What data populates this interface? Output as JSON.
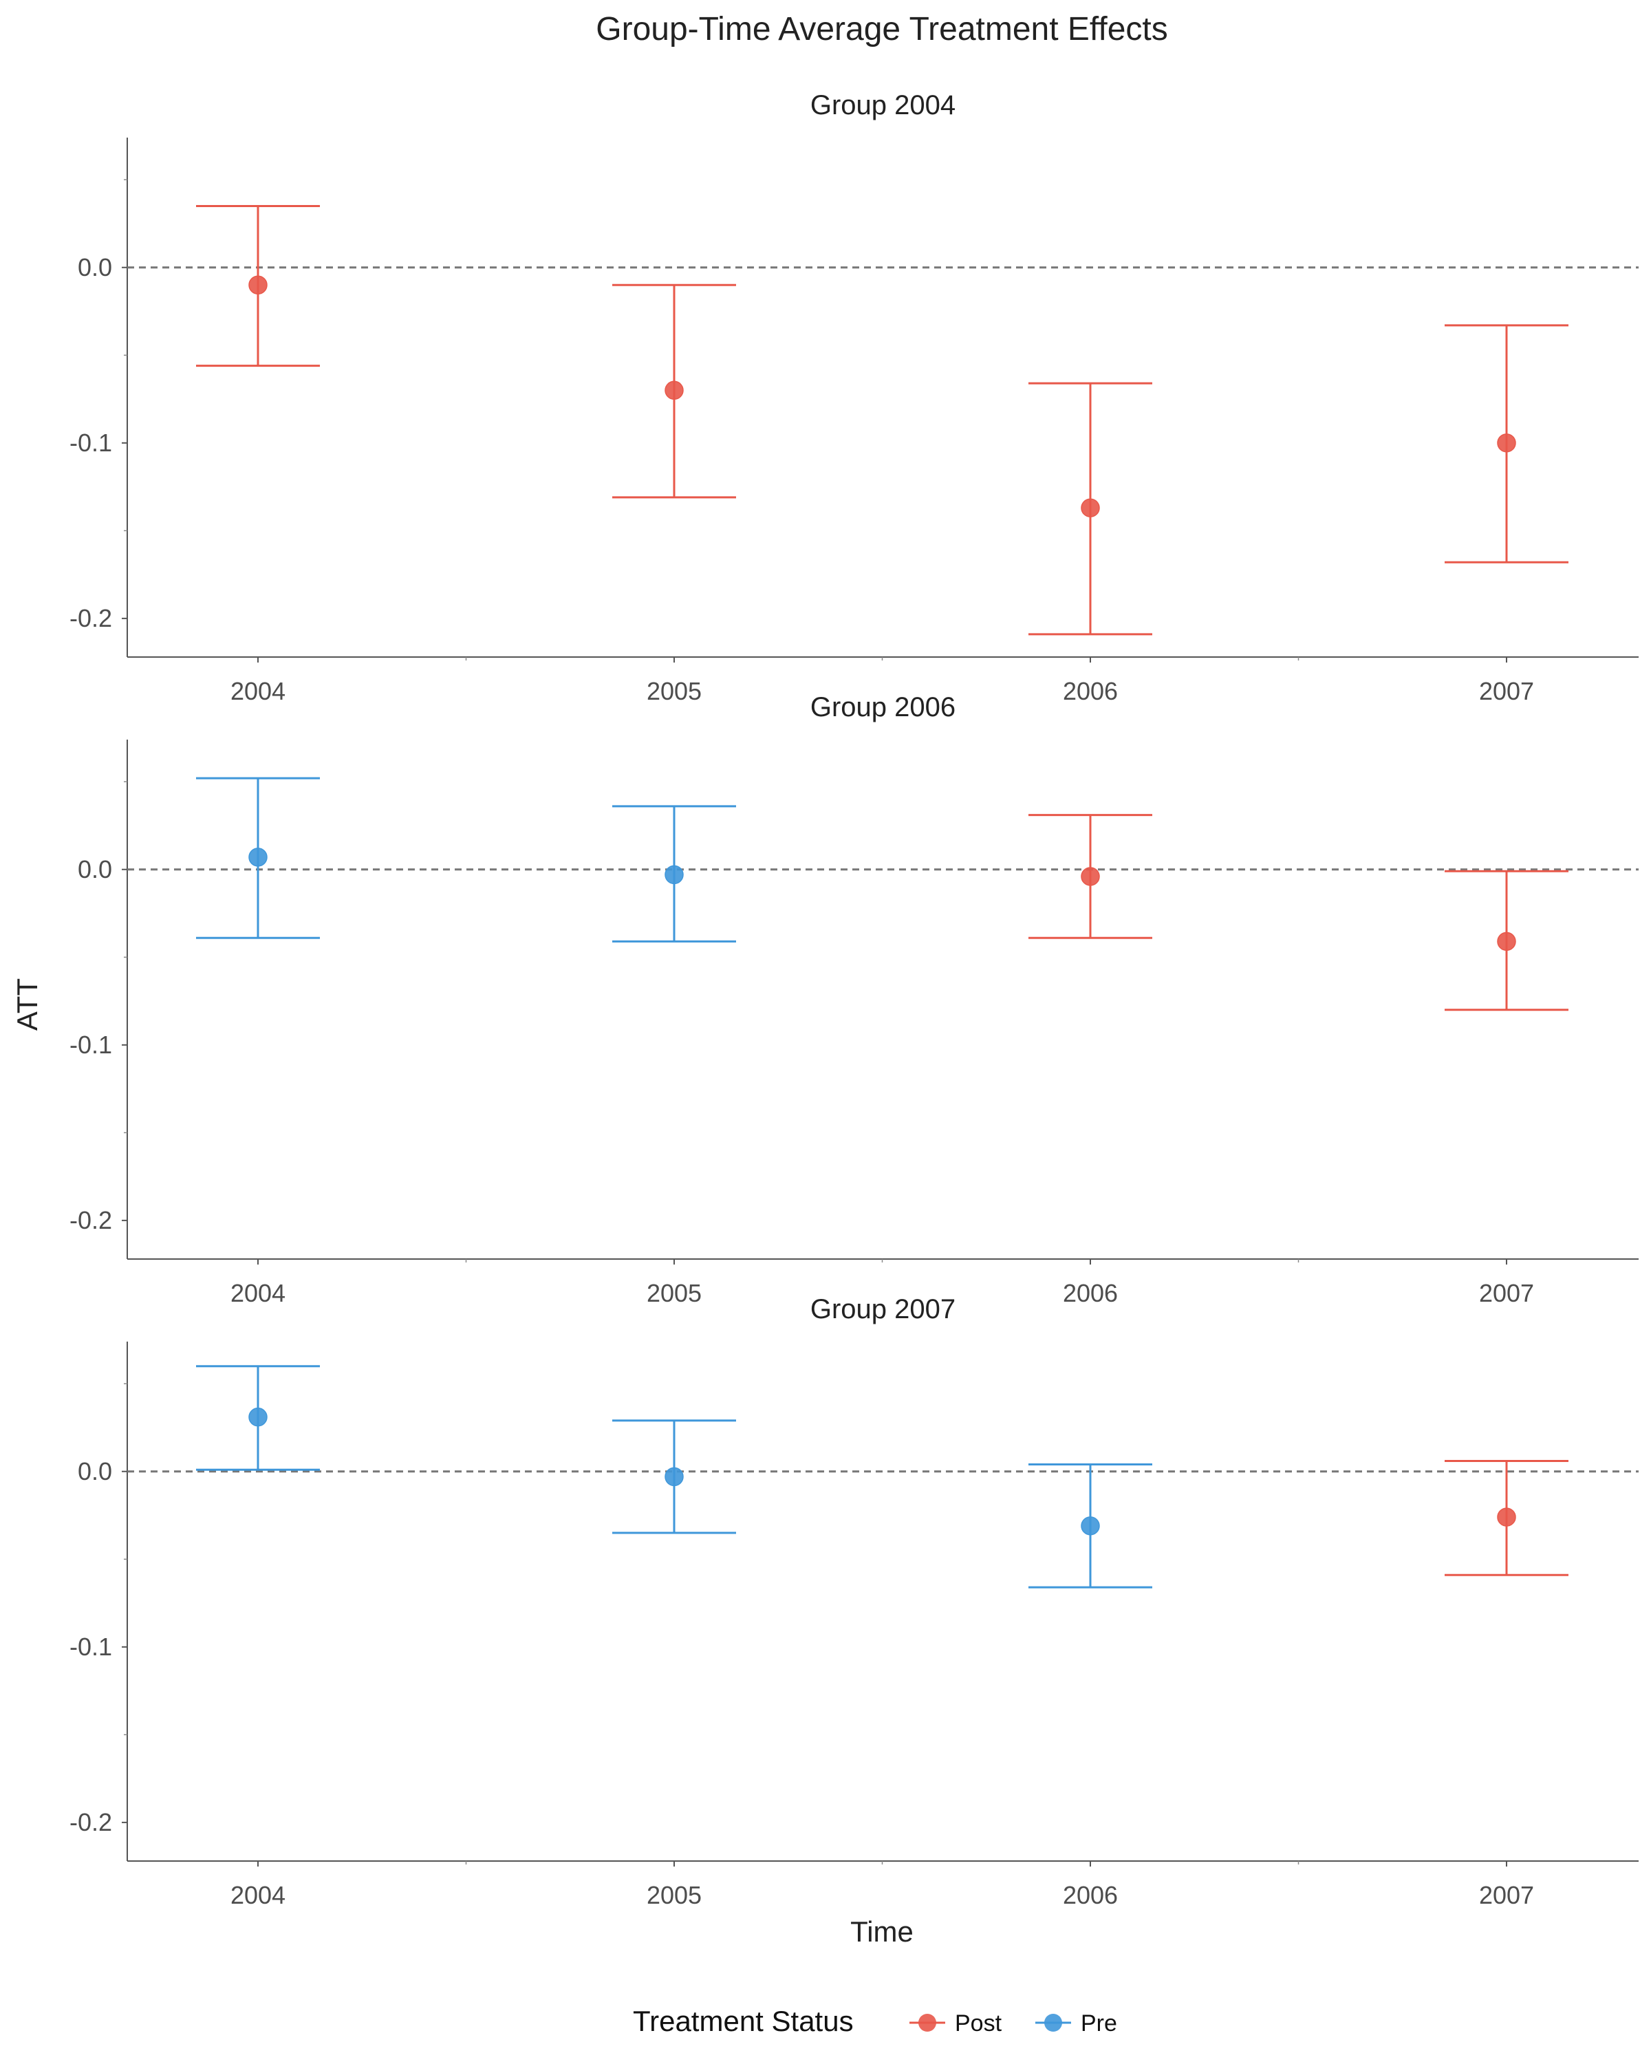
{
  "chart_data": {
    "type": "scatter",
    "subtype": "errorbar-facets",
    "title": "Group-Time Average Treatment Effects",
    "xlabel": "Time",
    "ylabel": "ATT",
    "x": [
      "2004",
      "2005",
      "2006",
      "2007"
    ],
    "ylim": [
      -0.222,
      0.074
    ],
    "yticks": [
      "0.0",
      "-0.1",
      "-0.2"
    ],
    "zero_line": "dashed",
    "grid": false,
    "legend": {
      "title": "Treatment Status",
      "placement": "bottom",
      "items": [
        {
          "label": "Post",
          "color": "#E8584A"
        },
        {
          "label": "Pre",
          "color": "#3F97DA"
        }
      ]
    },
    "panels": [
      {
        "title": "Group 2004",
        "points": [
          {
            "x": "2004",
            "att": -0.01,
            "lower": -0.056,
            "upper": 0.035,
            "status": "Post"
          },
          {
            "x": "2005",
            "att": -0.07,
            "lower": -0.131,
            "upper": -0.01,
            "status": "Post"
          },
          {
            "x": "2006",
            "att": -0.137,
            "lower": -0.209,
            "upper": -0.066,
            "status": "Post"
          },
          {
            "x": "2007",
            "att": -0.1,
            "lower": -0.168,
            "upper": -0.033,
            "status": "Post"
          }
        ]
      },
      {
        "title": "Group 2006",
        "points": [
          {
            "x": "2004",
            "att": 0.007,
            "lower": -0.039,
            "upper": 0.052,
            "status": "Pre"
          },
          {
            "x": "2005",
            "att": -0.003,
            "lower": -0.041,
            "upper": 0.036,
            "status": "Pre"
          },
          {
            "x": "2006",
            "att": -0.004,
            "lower": -0.039,
            "upper": 0.031,
            "status": "Post"
          },
          {
            "x": "2007",
            "att": -0.041,
            "lower": -0.08,
            "upper": -0.001,
            "status": "Post"
          }
        ]
      },
      {
        "title": "Group 2007",
        "points": [
          {
            "x": "2004",
            "att": 0.031,
            "lower": 0.001,
            "upper": 0.06,
            "status": "Pre"
          },
          {
            "x": "2005",
            "att": -0.003,
            "lower": -0.035,
            "upper": 0.029,
            "status": "Pre"
          },
          {
            "x": "2006",
            "att": -0.031,
            "lower": -0.066,
            "upper": 0.004,
            "status": "Pre"
          },
          {
            "x": "2007",
            "att": -0.026,
            "lower": -0.059,
            "upper": 0.006,
            "status": "Post"
          }
        ]
      }
    ]
  }
}
